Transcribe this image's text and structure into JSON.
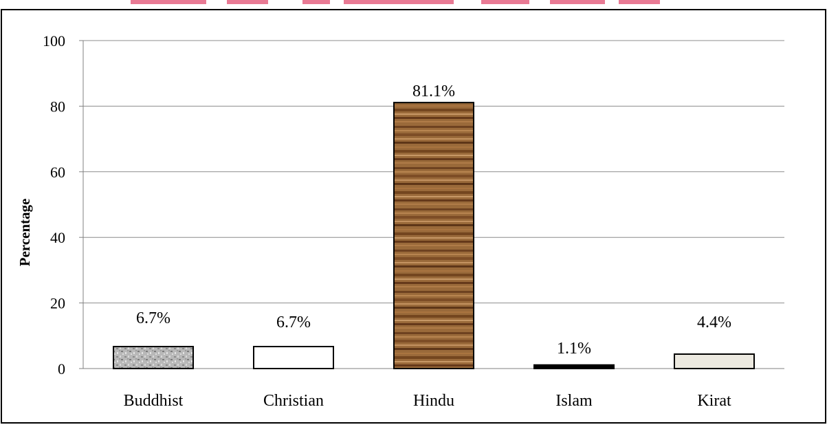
{
  "chart_data": {
    "type": "bar",
    "title": "",
    "xlabel": "",
    "ylabel": "Percentage",
    "ylim": [
      0,
      100
    ],
    "yticks": [
      0,
      20,
      40,
      60,
      80,
      100
    ],
    "grid": true,
    "categories": [
      "Buddhist",
      "Christian",
      "Hindu",
      "Islam",
      "Kirat"
    ],
    "values": [
      6.7,
      6.7,
      81.1,
      1.1,
      4.4
    ],
    "value_labels": [
      "6.7%",
      "6.7%",
      "81.1%",
      "1.1%",
      "4.4%"
    ],
    "bar_styles": [
      "gray-granite",
      "white",
      "wood-grain",
      "black",
      "light-beige"
    ]
  },
  "colors": {
    "gridline": "#8c8c8c",
    "axis": "#808080",
    "bar_outline": "#000000",
    "header_watermark": "#e05a7a"
  }
}
